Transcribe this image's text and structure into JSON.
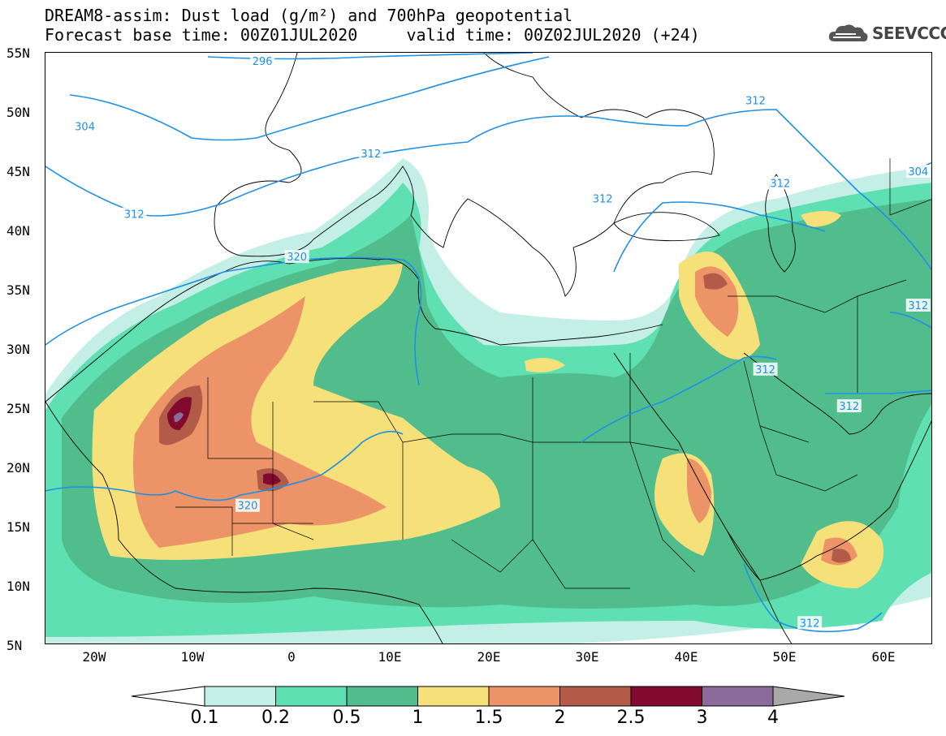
{
  "title": {
    "line1": "DREAM8-assim: Dust load (g/m²) and 700hPa geopotential",
    "line2": "Forecast base time: 00Z01JUL2020     valid time: 00Z02JUL2020 (+24)"
  },
  "logo": {
    "text": "SEEVCCC",
    "icon": "cloud-icon"
  },
  "axes": {
    "lat_labels": [
      "55N",
      "50N",
      "45N",
      "40N",
      "35N",
      "30N",
      "25N",
      "20N",
      "15N",
      "10N",
      "5N"
    ],
    "lon_labels": [
      "20W",
      "10W",
      "0",
      "10E",
      "20E",
      "30E",
      "40E",
      "50E",
      "60E"
    ]
  },
  "contour_labels": [
    {
      "text": "296",
      "lon": -3,
      "lat": 54.3
    },
    {
      "text": "304",
      "lon": -21,
      "lat": 48.8
    },
    {
      "text": "312",
      "lon": -16,
      "lat": 41.4
    },
    {
      "text": "312",
      "lon": 8,
      "lat": 46.5
    },
    {
      "text": "312",
      "lon": 31.5,
      "lat": 42.7
    },
    {
      "text": "312",
      "lon": 47,
      "lat": 51.0
    },
    {
      "text": "312",
      "lon": 49.5,
      "lat": 44.0
    },
    {
      "text": "304",
      "lon": 63.5,
      "lat": 45.0
    },
    {
      "text": "312",
      "lon": 63.5,
      "lat": 33.7
    },
    {
      "text": "312",
      "lon": 48.0,
      "lat": 28.3
    },
    {
      "text": "312",
      "lon": 56.5,
      "lat": 25.2
    },
    {
      "text": "312",
      "lon": 52.5,
      "lat": 6.9
    },
    {
      "text": "320",
      "lon": 0.5,
      "lat": 37.8
    },
    {
      "text": "320",
      "lon": -4.5,
      "lat": 16.8
    }
  ],
  "colorbar": {
    "labels": [
      "0.1",
      "0.2",
      "0.5",
      "1",
      "1.5",
      "2",
      "2.5",
      "3",
      "4"
    ],
    "colors": [
      "#c3efe6",
      "#5fe0b2",
      "#52bd8c",
      "#f5e07a",
      "#ec9467",
      "#b25b48",
      "#820a2f",
      "#8a6b9b"
    ],
    "under_color": "#ffffff",
    "over_color": "#a9a9a9"
  },
  "colors": {
    "geopotential_contour": "#1e90e6",
    "borders": "#000000"
  }
}
